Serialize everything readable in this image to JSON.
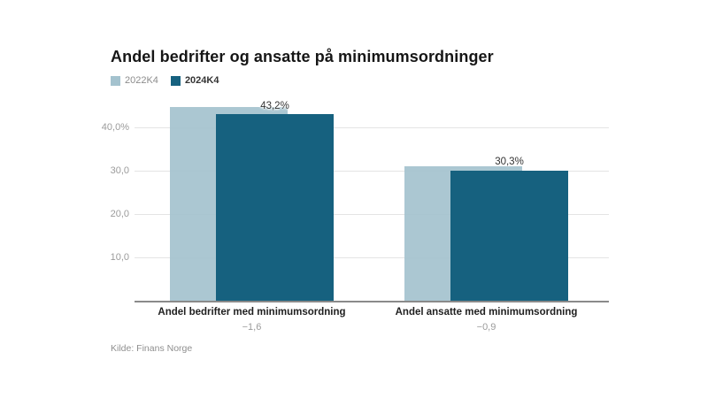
{
  "title": "Andel bedrifter og ansatte på minimumsordninger",
  "source": "Kilde: Finans Norge",
  "legend": [
    {
      "label": "2022K4",
      "color": "#a4c2ce"
    },
    {
      "label": "2024K4",
      "color": "#16617f"
    }
  ],
  "colors": {
    "series_2022": "#a4c2ce",
    "series_2024": "#16617f",
    "gridline": "#e4e4e4",
    "axis_line": "#8a8a8a",
    "tick_text": "#9b9b9b",
    "title_text": "#161616"
  },
  "chart_data": {
    "type": "bar",
    "title": "Andel bedrifter og ansatte på minimumsordninger",
    "categories": [
      "Andel bedrifter med minimumsordning",
      "Andel ansatte med minimumsordning"
    ],
    "category_sublabels": [
      "−1,6",
      "−0,9"
    ],
    "series": [
      {
        "name": "2022K4",
        "color": "#a4c2ce",
        "values": [
          44.8,
          31.2
        ],
        "value_labels": [
          "",
          ""
        ]
      },
      {
        "name": "2024K4",
        "color": "#16617f",
        "values": [
          43.2,
          30.3
        ],
        "value_labels": [
          "43,2%",
          "30,3%"
        ]
      }
    ],
    "xlabel": "",
    "ylabel": "",
    "ylim": [
      0,
      49
    ],
    "grid": true,
    "legend_position": "top-left",
    "yticks": [
      {
        "value": 10,
        "label": "10,0"
      },
      {
        "value": 20,
        "label": "20,0"
      },
      {
        "value": 30,
        "label": "30,0"
      },
      {
        "value": 40,
        "label": "40,0%"
      }
    ],
    "source": "Kilde: Finans Norge"
  }
}
